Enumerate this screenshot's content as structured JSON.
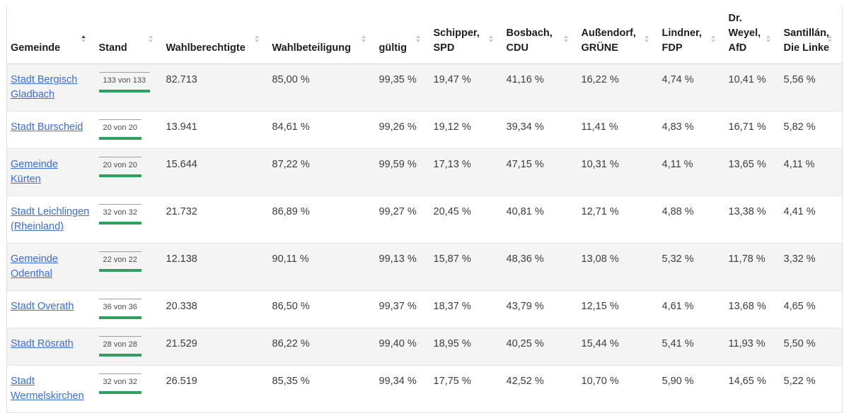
{
  "colors": {
    "link_blue": "#3d6be0",
    "progress_green": "#2f9e5f",
    "row_stripe": "#f4f4f4",
    "sort_active": "#4d4d4d",
    "sort_inactive": "#c9c9c9"
  },
  "table": {
    "columns": [
      {
        "key": "gemeinde",
        "label": "Gemeinde",
        "sort": "asc"
      },
      {
        "key": "stand",
        "label": "Stand",
        "sort": "none"
      },
      {
        "key": "wahlberechtigte",
        "label": "Wahlberechtigte",
        "sort": "none"
      },
      {
        "key": "wahlbeteiligung",
        "label": "Wahlbeteiligung",
        "sort": "none"
      },
      {
        "key": "gueltig",
        "label": "gültig",
        "sort": "none"
      },
      {
        "key": "spd",
        "label": "Schipper, SPD",
        "sort": "none"
      },
      {
        "key": "cdu",
        "label": "Bosbach, CDU",
        "sort": "none"
      },
      {
        "key": "gruene",
        "label": "Außendorf, GRÜNE",
        "sort": "none"
      },
      {
        "key": "fdp",
        "label": "Lindner, FDP",
        "sort": "none"
      },
      {
        "key": "afd",
        "label": "Dr. Weyel, AfD",
        "sort": "none"
      },
      {
        "key": "linke",
        "label": "Santillán, Die Linke",
        "sort": "none"
      }
    ],
    "rows": [
      {
        "gemeinde": "Stadt Bergisch Gladbach",
        "stand": "133 von 133",
        "wahlberechtigte": "82.713",
        "wahlbeteiligung": "85,00 %",
        "gueltig": "99,35 %",
        "spd": "19,47 %",
        "cdu": "41,16 %",
        "gruene": "16,22 %",
        "fdp": "4,74 %",
        "afd": "10,41 %",
        "linke": "5,56 %"
      },
      {
        "gemeinde": "Stadt Burscheid",
        "stand": "20 von 20",
        "wahlberechtigte": "13.941",
        "wahlbeteiligung": "84,61 %",
        "gueltig": "99,26 %",
        "spd": "19,12 %",
        "cdu": "39,34 %",
        "gruene": "11,41 %",
        "fdp": "4,83 %",
        "afd": "16,71 %",
        "linke": "5,82 %"
      },
      {
        "gemeinde": "Gemeinde Kürten",
        "stand": "20 von 20",
        "wahlberechtigte": "15.644",
        "wahlbeteiligung": "87,22 %",
        "gueltig": "99,59 %",
        "spd": "17,13 %",
        "cdu": "47,15 %",
        "gruene": "10,31 %",
        "fdp": "4,11 %",
        "afd": "13,65 %",
        "linke": "4,11 %"
      },
      {
        "gemeinde": "Stadt Leichlingen (Rheinland)",
        "stand": "32 von 32",
        "wahlberechtigte": "21.732",
        "wahlbeteiligung": "86,89 %",
        "gueltig": "99,27 %",
        "spd": "20,45 %",
        "cdu": "40,81 %",
        "gruene": "12,71 %",
        "fdp": "4,88 %",
        "afd": "13,38 %",
        "linke": "4,41 %"
      },
      {
        "gemeinde": "Gemeinde Odenthal",
        "stand": "22 von 22",
        "wahlberechtigte": "12.138",
        "wahlbeteiligung": "90,11 %",
        "gueltig": "99,13 %",
        "spd": "15,87 %",
        "cdu": "48,36 %",
        "gruene": "13,08 %",
        "fdp": "5,32 %",
        "afd": "11,78 %",
        "linke": "3,32 %"
      },
      {
        "gemeinde": "Stadt Overath",
        "stand": "36 von 36",
        "wahlberechtigte": "20.338",
        "wahlbeteiligung": "86,50 %",
        "gueltig": "99,37 %",
        "spd": "18,37 %",
        "cdu": "43,79 %",
        "gruene": "12,15 %",
        "fdp": "4,61 %",
        "afd": "13,68 %",
        "linke": "4,65 %"
      },
      {
        "gemeinde": "Stadt Rösrath",
        "stand": "28 von 28",
        "wahlberechtigte": "21.529",
        "wahlbeteiligung": "86,22 %",
        "gueltig": "99,40 %",
        "spd": "18,95 %",
        "cdu": "40,25 %",
        "gruene": "15,44 %",
        "fdp": "5,41 %",
        "afd": "11,93 %",
        "linke": "5,50 %"
      },
      {
        "gemeinde": "Stadt Wermelskirchen",
        "stand": "32 von 32",
        "wahlberechtigte": "26.519",
        "wahlbeteiligung": "85,35 %",
        "gueltig": "99,34 %",
        "spd": "17,75 %",
        "cdu": "42,52 %",
        "gruene": "10,70 %",
        "fdp": "5,90 %",
        "afd": "14,65 %",
        "linke": "5,22 %"
      }
    ]
  }
}
